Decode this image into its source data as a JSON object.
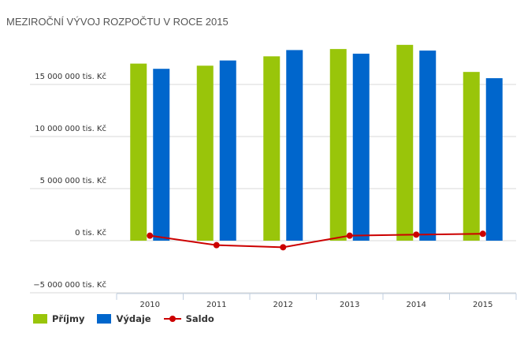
{
  "chart_data": {
    "type": "bar",
    "title": "MEZIROČNÍ VÝVOJ ROZPOČTU V ROCE 2015",
    "categories": [
      "2010",
      "2011",
      "2012",
      "2013",
      "2014",
      "2015"
    ],
    "ylim": [
      -5000000,
      20000000
    ],
    "yticks": [
      {
        "value": -5000000,
        "label": "−5 000 000 tis. Kč"
      },
      {
        "value": 0,
        "label": "0 tis. Kč"
      },
      {
        "value": 5000000,
        "label": "5 000 000 tis. Kč"
      },
      {
        "value": 10000000,
        "label": "10 000 000 tis. Kč"
      },
      {
        "value": 15000000,
        "label": "15 000 000 tis. Kč"
      }
    ],
    "grid": true,
    "legend_placement": "bottom-left",
    "series": [
      {
        "name": "Příjmy",
        "kind": "bar",
        "color": "#99c50a",
        "values": [
          17000000,
          16800000,
          17700000,
          18400000,
          18800000,
          16200000
        ]
      },
      {
        "name": "Výdaje",
        "kind": "bar",
        "color": "#0066cc",
        "values": [
          16500000,
          17300000,
          18300000,
          17950000,
          18250000,
          15600000
        ]
      },
      {
        "name": "Saldo",
        "kind": "line",
        "color": "#cc0000",
        "values": [
          480000,
          -430000,
          -630000,
          480000,
          580000,
          660000
        ]
      }
    ]
  }
}
